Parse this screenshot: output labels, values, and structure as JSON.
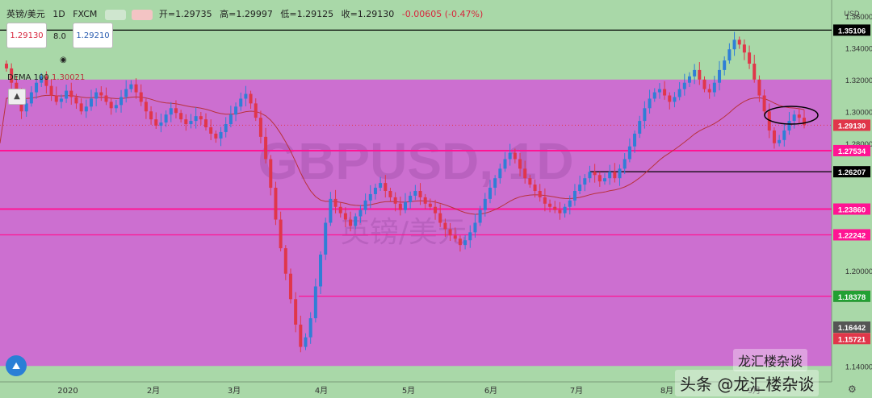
{
  "header": {
    "symbol": "英镑/美元",
    "interval": "1D",
    "exchange": "FXCM",
    "open": "开=1.29735",
    "high": "高=1.29997",
    "low": "低=1.29125",
    "close": "收=1.29130",
    "change": "-0.00605 (-0.47%)"
  },
  "price_boxes": {
    "bid": "1.29130",
    "spread": "8.0",
    "ask": "1.29210"
  },
  "indicators": {
    "dema": "DEMA 100",
    "dema_value": "1.30021"
  },
  "watermark": {
    "big": "GBPUSD, 1D",
    "small": "英镑/美元"
  },
  "branding": {
    "source": "龙汇楼杂谈",
    "toutiao": "头条 @龙汇楼杂谈"
  },
  "colors": {
    "background": "#a9d8a8",
    "zone": "#cc6fd0",
    "up": "#2f7fd6",
    "down": "#e0364a",
    "line_pink": "#ff1493",
    "dema": "#b8323c"
  },
  "chart_data": {
    "type": "candlestick",
    "y_axis": {
      "unit": "USD",
      "range": [
        1.13,
        1.37
      ],
      "ticks": [
        "1.36000",
        "1.34000",
        "1.32000",
        "1.30000",
        "1.28000",
        "1.20000",
        "1.14000"
      ]
    },
    "x_axis": {
      "ticks": [
        "2020",
        "2月",
        "3月",
        "4月",
        "5月",
        "6月",
        "7月",
        "8月",
        "9月"
      ]
    },
    "zone": {
      "top": 1.32,
      "bottom": 1.14
    },
    "horizontal_lines": [
      {
        "value": 1.35106,
        "label": "1.35106",
        "color": "#000000"
      },
      {
        "value": 1.27534,
        "label": "1.27534",
        "color": "#ff1493"
      },
      {
        "value": 1.26207,
        "label": "1.26207",
        "color": "#000000"
      },
      {
        "value": 1.2386,
        "label": "1.23860",
        "color": "#ff1493"
      },
      {
        "value": 1.22242,
        "label": "1.22242",
        "color": "#ff1493"
      },
      {
        "value": 1.18385,
        "label": "1.18385",
        "color": "#ff1493"
      }
    ],
    "price_tags": [
      {
        "value": 1.2913,
        "label": "1.29130",
        "color": "#e0364a"
      },
      {
        "value": 1.18378,
        "label": "1.18378",
        "color": "#22a033"
      },
      {
        "value": 1.16442,
        "label": "1.16442",
        "color": "#555555"
      },
      {
        "value": 1.15721,
        "label": "1.15721",
        "color": "#e0364a"
      }
    ],
    "closes": [
      1.327,
      1.318,
      1.309,
      1.3,
      1.305,
      1.312,
      1.318,
      1.322,
      1.316,
      1.31,
      1.306,
      1.308,
      1.313,
      1.309,
      1.305,
      1.3,
      1.303,
      1.308,
      1.312,
      1.31,
      1.306,
      1.302,
      1.304,
      1.309,
      1.314,
      1.317,
      1.312,
      1.306,
      1.3,
      1.295,
      1.291,
      1.293,
      1.298,
      1.302,
      1.299,
      1.295,
      1.292,
      1.294,
      1.297,
      1.295,
      1.29,
      1.286,
      1.283,
      1.287,
      1.292,
      1.298,
      1.303,
      1.308,
      1.311,
      1.305,
      1.296,
      1.284,
      1.27,
      1.252,
      1.232,
      1.214,
      1.198,
      1.182,
      1.166,
      1.152,
      1.158,
      1.17,
      1.19,
      1.21,
      1.23,
      1.245,
      1.24,
      1.236,
      1.232,
      1.228,
      1.234,
      1.238,
      1.244,
      1.248,
      1.252,
      1.255,
      1.25,
      1.246,
      1.242,
      1.238,
      1.243,
      1.247,
      1.25,
      1.246,
      1.242,
      1.24,
      1.236,
      1.23,
      1.226,
      1.222,
      1.22,
      1.216,
      1.219,
      1.224,
      1.23,
      1.238,
      1.245,
      1.252,
      1.258,
      1.264,
      1.27,
      1.274,
      1.27,
      1.264,
      1.258,
      1.254,
      1.25,
      1.246,
      1.242,
      1.24,
      1.238,
      1.236,
      1.24,
      1.244,
      1.25,
      1.254,
      1.258,
      1.262,
      1.26,
      1.256,
      1.258,
      1.262,
      1.258,
      1.264,
      1.27,
      1.278,
      1.286,
      1.294,
      1.302,
      1.308,
      1.312,
      1.314,
      1.31,
      1.306,
      1.309,
      1.314,
      1.318,
      1.322,
      1.326,
      1.32,
      1.314,
      1.312,
      1.318,
      1.326,
      1.332,
      1.339,
      1.345,
      1.342,
      1.337,
      1.33,
      1.32,
      1.31,
      1.3,
      1.288,
      1.28,
      1.282,
      1.288,
      1.294,
      1.298,
      1.296,
      1.2913
    ]
  }
}
